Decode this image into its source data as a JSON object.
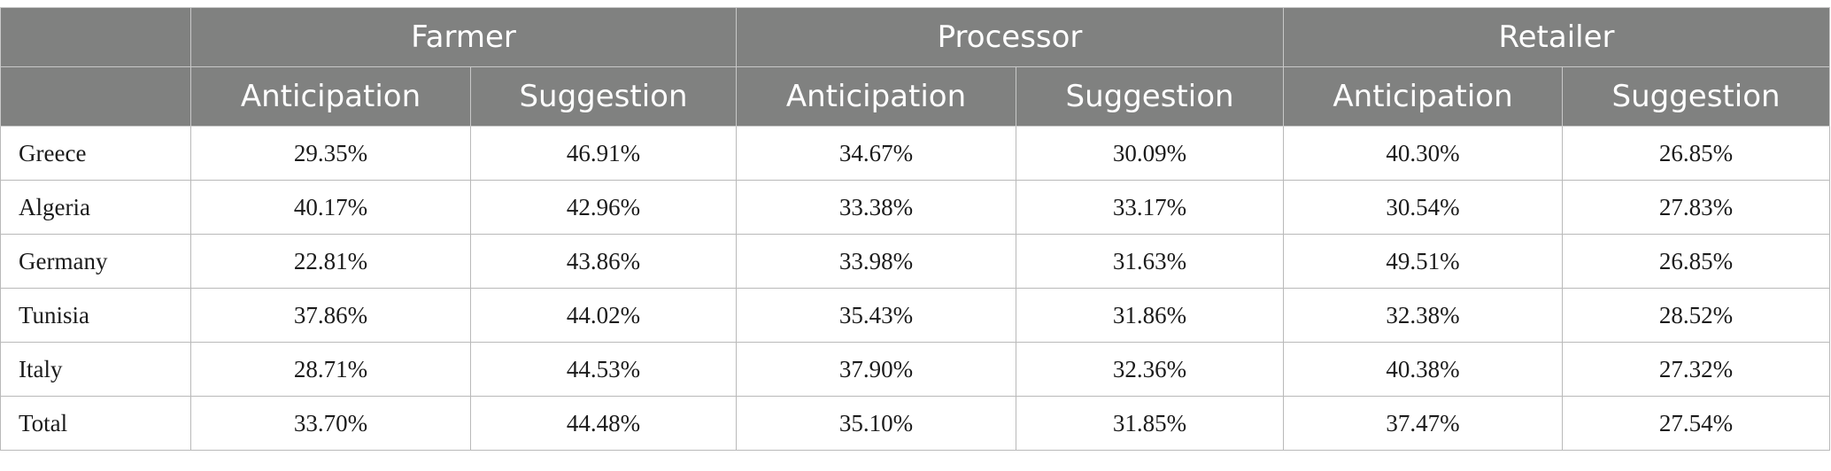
{
  "table": {
    "groups": [
      "Farmer",
      "Processor",
      "Retailer"
    ],
    "subheaders": [
      "Anticipation",
      "Suggestion",
      "Anticipation",
      "Suggestion",
      "Anticipation",
      "Suggestion"
    ],
    "rows": [
      {
        "label": "Greece",
        "cells": [
          "29.35%",
          "46.91%",
          "34.67%",
          "30.09%",
          "40.30%",
          "26.85%"
        ]
      },
      {
        "label": "Algeria",
        "cells": [
          "40.17%",
          "42.96%",
          "33.38%",
          "33.17%",
          "30.54%",
          "27.83%"
        ]
      },
      {
        "label": "Germany",
        "cells": [
          "22.81%",
          "43.86%",
          "33.98%",
          "31.63%",
          "49.51%",
          "26.85%"
        ]
      },
      {
        "label": "Tunisia",
        "cells": [
          "37.86%",
          "44.02%",
          "35.43%",
          "31.86%",
          "32.38%",
          "28.52%"
        ]
      },
      {
        "label": "Italy",
        "cells": [
          "28.71%",
          "44.53%",
          "37.90%",
          "32.36%",
          "40.38%",
          "27.32%"
        ]
      },
      {
        "label": "Total",
        "cells": [
          "33.70%",
          "44.48%",
          "35.10%",
          "31.85%",
          "37.47%",
          "27.54%"
        ]
      }
    ],
    "colors": {
      "header_bg": "#808180",
      "header_text": "#ffffff",
      "grid": "#b9b9b9"
    }
  }
}
